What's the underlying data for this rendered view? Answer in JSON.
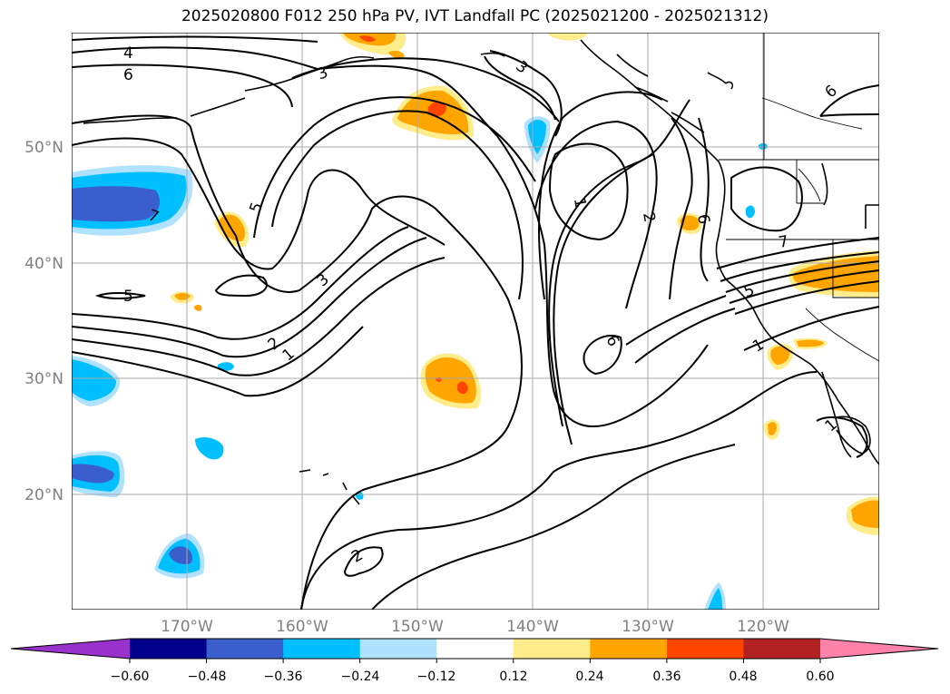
{
  "map": {
    "title": "2025020800 F012 250 hPa PV, IVT Landfall PC (2025021200 - 2025021312)",
    "lat_labels": [
      "50°N",
      "40°N",
      "30°N",
      "20°N"
    ],
    "lon_labels": [
      "170°W",
      "160°W",
      "150°W",
      "140°W",
      "130°W",
      "120°W"
    ],
    "contour_labels": [
      "4",
      "6",
      "3",
      "3",
      "6",
      "1",
      "2",
      "6",
      "5",
      "7",
      "7",
      "5",
      "3",
      "2",
      "1",
      "6",
      "5",
      "1",
      "1",
      "2"
    ],
    "colorbar": {
      "ticks": [
        "−0.60",
        "−0.48",
        "−0.36",
        "−0.24",
        "−0.12",
        "0.12",
        "0.24",
        "0.36",
        "0.48",
        "0.60"
      ],
      "colors": [
        "#9932cc",
        "#00008b",
        "#3a5fcd",
        "#00bfff",
        "#b0e2ff",
        "#ffffff",
        "#ffec8b",
        "#ffa500",
        "#ff4500",
        "#b22222",
        "#ff82ab"
      ]
    }
  }
}
